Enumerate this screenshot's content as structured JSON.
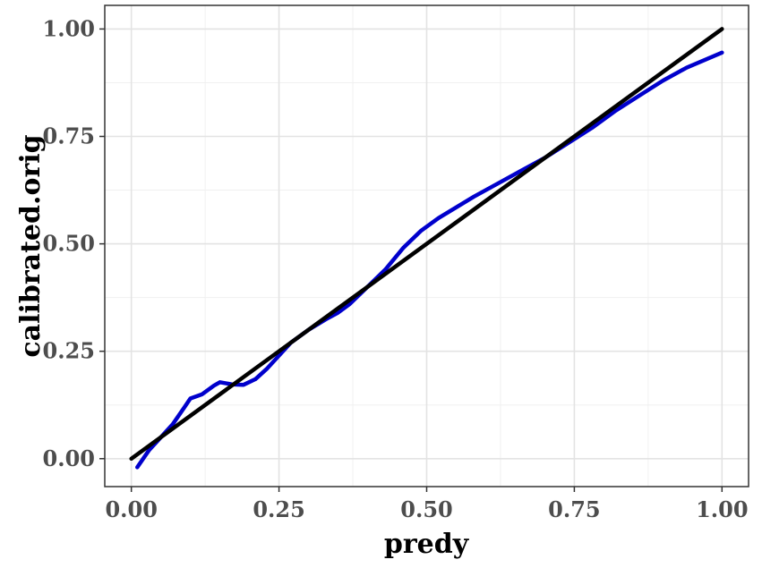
{
  "chart_data": {
    "type": "line",
    "xlabel": "predy",
    "ylabel": "calibrated.orig",
    "xlim": [
      -0.045,
      1.045
    ],
    "ylim": [
      -0.065,
      1.055
    ],
    "x_ticks": [
      "0.00",
      "0.25",
      "0.50",
      "0.75",
      "1.00"
    ],
    "y_ticks": [
      "0.00",
      "0.25",
      "0.50",
      "0.75",
      "1.00"
    ],
    "grid": true,
    "legend": "none",
    "series": [
      {
        "color": "#0000cc",
        "points": [
          [
            0.01,
            -0.02
          ],
          [
            0.03,
            0.02
          ],
          [
            0.05,
            0.05
          ],
          [
            0.07,
            0.08
          ],
          [
            0.09,
            0.12
          ],
          [
            0.1,
            0.14
          ],
          [
            0.12,
            0.15
          ],
          [
            0.14,
            0.17
          ],
          [
            0.15,
            0.178
          ],
          [
            0.17,
            0.173
          ],
          [
            0.19,
            0.172
          ],
          [
            0.21,
            0.185
          ],
          [
            0.23,
            0.21
          ],
          [
            0.25,
            0.24
          ],
          [
            0.27,
            0.27
          ],
          [
            0.3,
            0.3
          ],
          [
            0.33,
            0.325
          ],
          [
            0.35,
            0.34
          ],
          [
            0.37,
            0.36
          ],
          [
            0.4,
            0.4
          ],
          [
            0.43,
            0.44
          ],
          [
            0.46,
            0.49
          ],
          [
            0.49,
            0.53
          ],
          [
            0.52,
            0.56
          ],
          [
            0.55,
            0.585
          ],
          [
            0.58,
            0.61
          ],
          [
            0.62,
            0.64
          ],
          [
            0.66,
            0.67
          ],
          [
            0.7,
            0.7
          ],
          [
            0.74,
            0.735
          ],
          [
            0.78,
            0.77
          ],
          [
            0.82,
            0.81
          ],
          [
            0.86,
            0.845
          ],
          [
            0.9,
            0.88
          ],
          [
            0.94,
            0.91
          ],
          [
            1.0,
            0.945
          ]
        ]
      },
      {
        "color": "#000000",
        "points": [
          [
            0.0,
            0.0
          ],
          [
            1.0,
            1.0
          ]
        ]
      }
    ]
  }
}
